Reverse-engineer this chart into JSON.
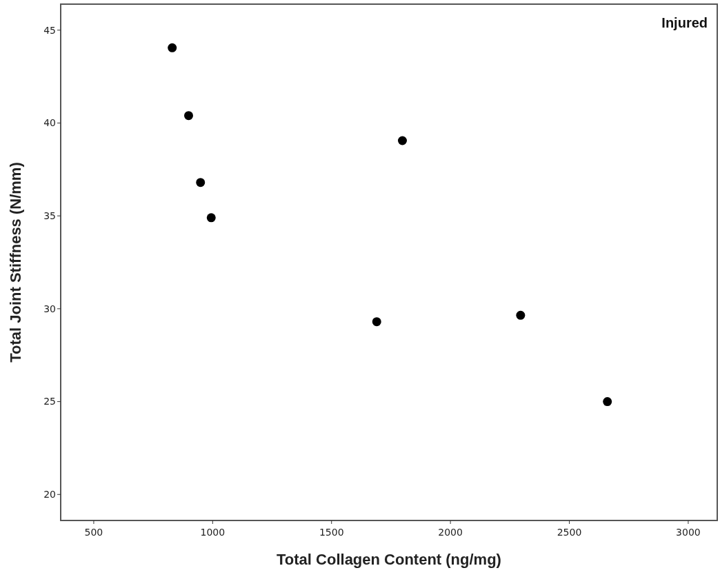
{
  "chart_data": {
    "type": "scatter",
    "xlabel": "Total Collagen Content (ng/mg)",
    "ylabel": "Total Joint Stiffness (N/mm)",
    "annotations": [
      "Injured"
    ],
    "x": [
      830,
      899,
      949,
      994,
      1690,
      1798,
      2295,
      2660
    ],
    "series": [
      {
        "color": "#000000",
        "values": [
          44.05,
          40.4,
          36.8,
          34.9,
          29.3,
          39.05,
          29.65,
          25.0
        ]
      }
    ],
    "xlim": [
      361,
      3122
    ],
    "xticks": [
      500,
      1000,
      1500,
      2000,
      2500,
      3000
    ],
    "ylim": [
      18.6,
      46.4
    ],
    "yticks": [
      20,
      25,
      30,
      35,
      40,
      45
    ],
    "marker": "circle",
    "grid": false
  }
}
